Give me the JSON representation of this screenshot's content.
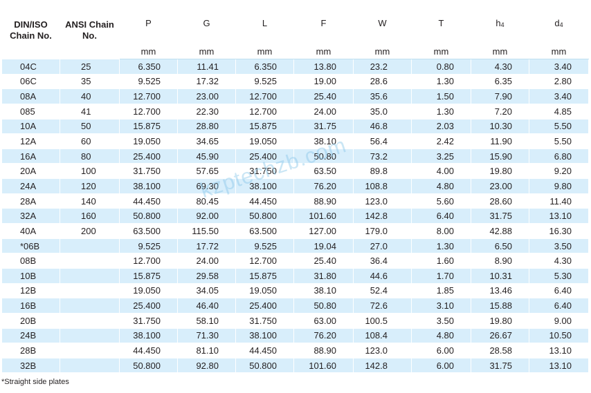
{
  "headers": {
    "din_iso": "DIN/ISO Chain No.",
    "ansi": "ANSI Chain No.",
    "cols": [
      "P",
      "G",
      "L",
      "F",
      "W",
      "T",
      "h",
      "d"
    ],
    "subs": {
      "h": "4",
      "d": "4"
    },
    "unit": "mm"
  },
  "rows": [
    {
      "din": "04C",
      "ansi": "25",
      "P": "6.350",
      "G": "11.41",
      "L": "6.350",
      "F": "13.80",
      "W": "23.2",
      "T": "0.80",
      "h4": "4.30",
      "d4": "3.40"
    },
    {
      "din": "06C",
      "ansi": "35",
      "P": "9.525",
      "G": "17.32",
      "L": "9.525",
      "F": "19.00",
      "W": "28.6",
      "T": "1.30",
      "h4": "6.35",
      "d4": "2.80"
    },
    {
      "din": "08A",
      "ansi": "40",
      "P": "12.700",
      "G": "23.00",
      "L": "12.700",
      "F": "25.40",
      "W": "35.6",
      "T": "1.50",
      "h4": "7.90",
      "d4": "3.40"
    },
    {
      "din": "085",
      "ansi": "41",
      "P": "12.700",
      "G": "22.30",
      "L": "12.700",
      "F": "24.00",
      "W": "35.0",
      "T": "1.30",
      "h4": "7.20",
      "d4": "4.85"
    },
    {
      "din": "10A",
      "ansi": "50",
      "P": "15.875",
      "G": "28.80",
      "L": "15.875",
      "F": "31.75",
      "W": "46.8",
      "T": "2.03",
      "h4": "10.30",
      "d4": "5.50"
    },
    {
      "din": "12A",
      "ansi": "60",
      "P": "19.050",
      "G": "34.65",
      "L": "19.050",
      "F": "38.10",
      "W": "56.4",
      "T": "2.42",
      "h4": "11.90",
      "d4": "5.50"
    },
    {
      "din": "16A",
      "ansi": "80",
      "P": "25.400",
      "G": "45.90",
      "L": "25.400",
      "F": "50.80",
      "W": "73.2",
      "T": "3.25",
      "h4": "15.90",
      "d4": "6.80"
    },
    {
      "din": "20A",
      "ansi": "100",
      "P": "31.750",
      "G": "57.65",
      "L": "31.750",
      "F": "63.50",
      "W": "89.8",
      "T": "4.00",
      "h4": "19.80",
      "d4": "9.20"
    },
    {
      "din": "24A",
      "ansi": "120",
      "P": "38.100",
      "G": "69.30",
      "L": "38.100",
      "F": "76.20",
      "W": "108.8",
      "T": "4.80",
      "h4": "23.00",
      "d4": "9.80"
    },
    {
      "din": "28A",
      "ansi": "140",
      "P": "44.450",
      "G": "80.45",
      "L": "44.450",
      "F": "88.90",
      "W": "123.0",
      "T": "5.60",
      "h4": "28.60",
      "d4": "11.40"
    },
    {
      "din": "32A",
      "ansi": "160",
      "P": "50.800",
      "G": "92.00",
      "L": "50.800",
      "F": "101.60",
      "W": "142.8",
      "T": "6.40",
      "h4": "31.75",
      "d4": "13.10"
    },
    {
      "din": "40A",
      "ansi": "200",
      "P": "63.500",
      "G": "115.50",
      "L": "63.500",
      "F": "127.00",
      "W": "179.0",
      "T": "8.00",
      "h4": "42.88",
      "d4": "16.30"
    },
    {
      "din": "*06B",
      "ansi": "",
      "P": "9.525",
      "G": "17.72",
      "L": "9.525",
      "F": "19.04",
      "W": "27.0",
      "T": "1.30",
      "h4": "6.50",
      "d4": "3.50"
    },
    {
      "din": "08B",
      "ansi": "",
      "P": "12.700",
      "G": "24.00",
      "L": "12.700",
      "F": "25.40",
      "W": "36.4",
      "T": "1.60",
      "h4": "8.90",
      "d4": "4.30"
    },
    {
      "din": "10B",
      "ansi": "",
      "P": "15.875",
      "G": "29.58",
      "L": "15.875",
      "F": "31.80",
      "W": "44.6",
      "T": "1.70",
      "h4": "10.31",
      "d4": "5.30"
    },
    {
      "din": "12B",
      "ansi": "",
      "P": "19.050",
      "G": "34.05",
      "L": "19.050",
      "F": "38.10",
      "W": "52.4",
      "T": "1.85",
      "h4": "13.46",
      "d4": "6.40"
    },
    {
      "din": "16B",
      "ansi": "",
      "P": "25.400",
      "G": "46.40",
      "L": "25.400",
      "F": "50.80",
      "W": "72.6",
      "T": "3.10",
      "h4": "15.88",
      "d4": "6.40"
    },
    {
      "din": "20B",
      "ansi": "",
      "P": "31.750",
      "G": "58.10",
      "L": "31.750",
      "F": "63.00",
      "W": "100.5",
      "T": "3.50",
      "h4": "19.80",
      "d4": "9.00"
    },
    {
      "din": "24B",
      "ansi": "",
      "P": "38.100",
      "G": "71.30",
      "L": "38.100",
      "F": "76.20",
      "W": "108.4",
      "T": "4.80",
      "h4": "26.67",
      "d4": "10.50"
    },
    {
      "din": "28B",
      "ansi": "",
      "P": "44.450",
      "G": "81.10",
      "L": "44.450",
      "F": "88.90",
      "W": "123.0",
      "T": "6.00",
      "h4": "28.58",
      "d4": "13.10"
    },
    {
      "din": "32B",
      "ansi": "",
      "P": "50.800",
      "G": "92.80",
      "L": "50.800",
      "F": "101.60",
      "W": "142.8",
      "T": "6.00",
      "h4": "31.75",
      "d4": "13.10"
    }
  ],
  "footnote": "*Straight side plates",
  "watermark": "kzptechzb.com",
  "colors": {
    "row_blue": "#d8eefb",
    "text": "#231f20"
  }
}
